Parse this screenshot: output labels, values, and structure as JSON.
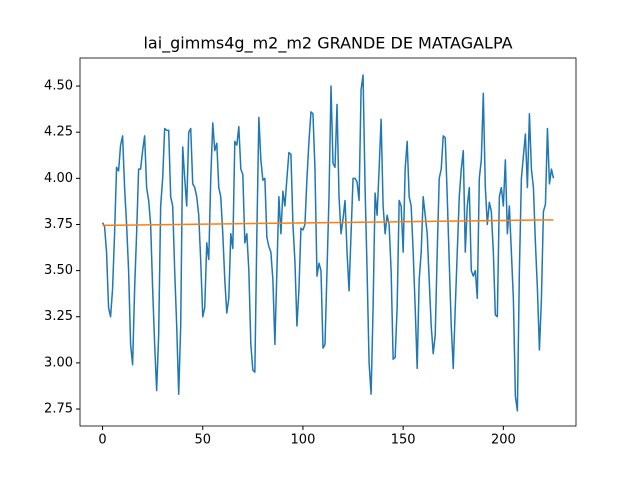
{
  "chart_data": {
    "type": "line",
    "title": "lai_gimms4g_m2_m2 GRANDE DE MATAGALPA",
    "xlim": [
      -11.25,
      236.25
    ],
    "xticks": [
      0,
      50,
      100,
      150,
      200
    ],
    "ylim": [
      2.658,
      4.652
    ],
    "yticks": [
      2.75,
      {
        "value": 3,
        "label": "3.00"
      },
      3.25,
      {
        "value": 3.5,
        "label": "3.50"
      },
      3.75,
      {
        "value": 4,
        "label": "4.00"
      },
      4.25,
      {
        "value": 4.5,
        "label": "4.50"
      }
    ],
    "series": [
      {
        "color": "#1f77b4",
        "x": [
          0,
          1,
          2,
          3,
          4,
          5,
          6,
          7,
          8,
          9,
          10,
          11,
          12,
          13,
          14,
          15,
          16,
          17,
          18,
          19,
          20,
          21,
          22,
          23,
          24,
          25,
          26,
          27,
          28,
          29,
          30,
          31,
          32,
          33,
          34,
          35,
          36,
          37,
          38,
          39,
          40,
          41,
          42,
          43,
          44,
          45,
          46,
          47,
          48,
          49,
          50,
          51,
          52,
          53,
          54,
          55,
          56,
          57,
          58,
          59,
          60,
          61,
          62,
          63,
          64,
          65,
          66,
          67,
          68,
          69,
          70,
          71,
          72,
          73,
          74,
          75,
          76,
          77,
          78,
          79,
          80,
          81,
          82,
          83,
          84,
          85,
          86,
          87,
          88,
          89,
          90,
          91,
          92,
          93,
          94,
          95,
          96,
          97,
          98,
          99,
          100,
          101,
          102,
          103,
          104,
          105,
          106,
          107,
          108,
          109,
          110,
          111,
          112,
          113,
          114,
          115,
          116,
          117,
          118,
          119,
          120,
          121,
          122,
          123,
          124,
          125,
          126,
          127,
          128,
          129,
          130,
          131,
          132,
          133,
          134,
          135,
          136,
          137,
          138,
          139,
          140,
          141,
          142,
          143,
          144,
          145,
          146,
          147,
          148,
          149,
          150,
          151,
          152,
          153,
          154,
          155,
          156,
          157,
          158,
          159,
          160,
          161,
          162,
          163,
          164,
          165,
          166,
          167,
          168,
          169,
          170,
          171,
          172,
          173,
          174,
          175,
          176,
          177,
          178,
          179,
          180,
          181,
          182,
          183,
          184,
          185,
          186,
          187,
          188,
          189,
          190,
          191,
          192,
          193,
          194,
          195,
          196,
          197,
          198,
          199,
          200,
          201,
          202,
          203,
          204,
          205,
          206,
          207,
          208,
          209,
          210,
          211,
          212,
          213,
          214,
          215,
          216,
          217,
          218,
          219,
          220,
          221,
          222,
          223,
          224,
          225
        ],
        "values": [
          3.76,
          3.74,
          3.6,
          3.3,
          3.25,
          3.4,
          3.7,
          4.06,
          4.04,
          4.18,
          4.23,
          3.95,
          3.75,
          3.5,
          3.1,
          2.99,
          3.4,
          3.7,
          4.05,
          4.05,
          4.15,
          4.23,
          3.95,
          3.88,
          3.75,
          3.4,
          3.1,
          2.85,
          3.15,
          3.85,
          4.0,
          4.27,
          4.26,
          4.26,
          3.9,
          3.85,
          3.5,
          3.2,
          2.83,
          3.2,
          4.17,
          4.0,
          3.85,
          4.25,
          4.27,
          3.97,
          3.95,
          3.9,
          3.8,
          3.55,
          3.25,
          3.3,
          3.65,
          3.56,
          4.0,
          4.3,
          4.15,
          4.19,
          3.95,
          3.9,
          3.7,
          3.45,
          3.27,
          3.35,
          3.7,
          3.62,
          4.2,
          4.18,
          4.28,
          4.05,
          4.02,
          3.65,
          3.7,
          3.5,
          3.1,
          2.96,
          2.95,
          3.7,
          4.33,
          4.1,
          3.99,
          4.0,
          3.68,
          3.63,
          3.6,
          3.45,
          3.1,
          3.5,
          3.9,
          3.7,
          3.93,
          3.85,
          4.0,
          4.14,
          4.13,
          3.75,
          3.55,
          3.2,
          3.4,
          3.73,
          3.72,
          3.75,
          4.0,
          4.2,
          4.36,
          4.35,
          4.05,
          3.47,
          3.54,
          3.5,
          3.08,
          3.1,
          3.5,
          3.9,
          4.5,
          4.08,
          4.06,
          4.4,
          3.9,
          3.7,
          3.78,
          3.88,
          3.6,
          3.39,
          3.7,
          4.0,
          4.0,
          3.98,
          3.88,
          4.48,
          4.56,
          3.95,
          3.5,
          3.0,
          2.83,
          3.3,
          3.92,
          3.8,
          4.05,
          4.32,
          3.85,
          3.7,
          3.8,
          3.75,
          3.5,
          3.02,
          3.03,
          3.3,
          3.88,
          3.85,
          3.6,
          4.05,
          4.2,
          3.9,
          3.85,
          3.6,
          3.3,
          2.97,
          3.45,
          3.6,
          3.9,
          3.8,
          3.7,
          3.45,
          3.2,
          3.05,
          3.15,
          3.6,
          4.0,
          4.05,
          4.23,
          4.22,
          3.9,
          3.55,
          3.2,
          2.97,
          3.3,
          3.6,
          3.9,
          4.05,
          4.15,
          3.6,
          3.85,
          3.95,
          3.5,
          3.47,
          3.5,
          3.35,
          4.0,
          4.1,
          4.46,
          3.95,
          3.75,
          3.87,
          3.82,
          3.6,
          3.26,
          3.25,
          3.9,
          3.95,
          3.85,
          4.1,
          3.7,
          3.85,
          3.6,
          3.35,
          2.82,
          2.74,
          3.5,
          4.0,
          4.12,
          4.24,
          3.95,
          4.35,
          4.05,
          3.95,
          3.65,
          3.4,
          3.07,
          3.35,
          3.82,
          3.86,
          4.27,
          3.97,
          4.05,
          4.0
        ]
      },
      {
        "color": "#ff7f0e",
        "x": [
          0,
          225
        ],
        "values": [
          3.745,
          3.775
        ]
      }
    ]
  }
}
